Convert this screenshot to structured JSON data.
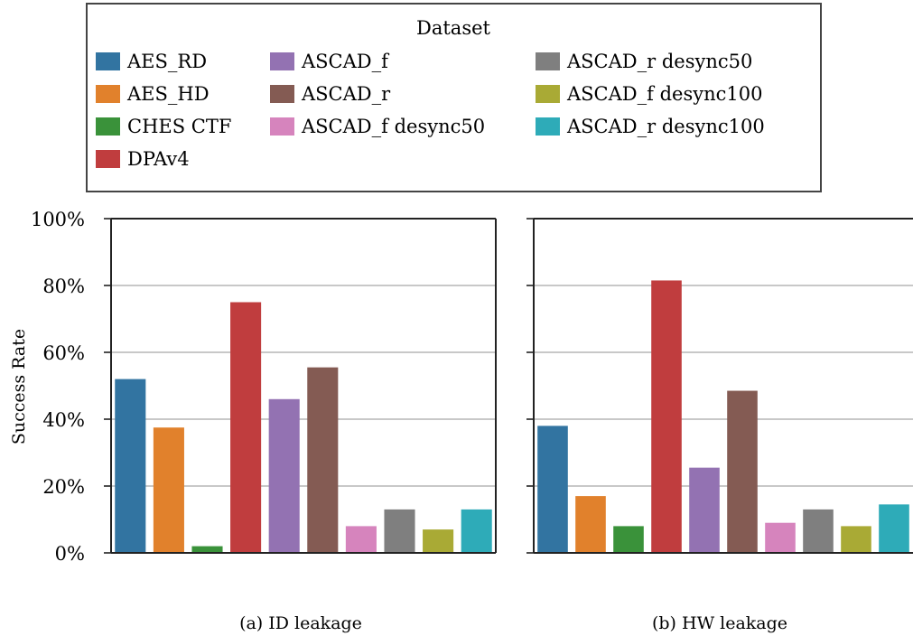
{
  "figure": {
    "legend": {
      "title": "Dataset"
    },
    "ylabel": "Success Rate",
    "yticks": [
      "0%",
      "20%",
      "40%",
      "60%",
      "80%",
      "100%"
    ]
  },
  "series_colors": {
    "AES_RD": "#3274a1",
    "AES_HD": "#e1812c",
    "CHES CTF": "#3a923a",
    "DPAv4": "#c03d3e",
    "ASCAD_f": "#9372b2",
    "ASCAD_r": "#845b53",
    "ASCAD_f desync50": "#d684bd",
    "ASCAD_r desync50": "#7f7f7f",
    "ASCAD_f desync100": "#a9aa35",
    "ASCAD_r desync100": "#2eabb8"
  },
  "chart_data": [
    {
      "type": "bar",
      "title": "(a) ID leakage",
      "ylabel": "Success Rate",
      "ylim": [
        0,
        100
      ],
      "grid": true,
      "legend_placement": "top",
      "categories": [
        "AES_RD",
        "AES_HD",
        "CHES CTF",
        "DPAv4",
        "ASCAD_f",
        "ASCAD_r",
        "ASCAD_f desync50",
        "ASCAD_r desync50",
        "ASCAD_f desync100",
        "ASCAD_r desync100"
      ],
      "values": [
        52,
        37.5,
        2,
        75,
        46,
        55.5,
        8,
        13,
        7,
        13
      ]
    },
    {
      "type": "bar",
      "title": "(b) HW leakage",
      "ylim": [
        0,
        100
      ],
      "grid": true,
      "legend_placement": "top",
      "categories": [
        "AES_RD",
        "AES_HD",
        "CHES CTF",
        "DPAv4",
        "ASCAD_f",
        "ASCAD_r",
        "ASCAD_f desync50",
        "ASCAD_r desync50",
        "ASCAD_f desync100",
        "ASCAD_r desync100"
      ],
      "values": [
        38,
        17,
        8,
        81.5,
        25.5,
        48.5,
        9,
        13,
        8,
        14.5
      ]
    }
  ]
}
